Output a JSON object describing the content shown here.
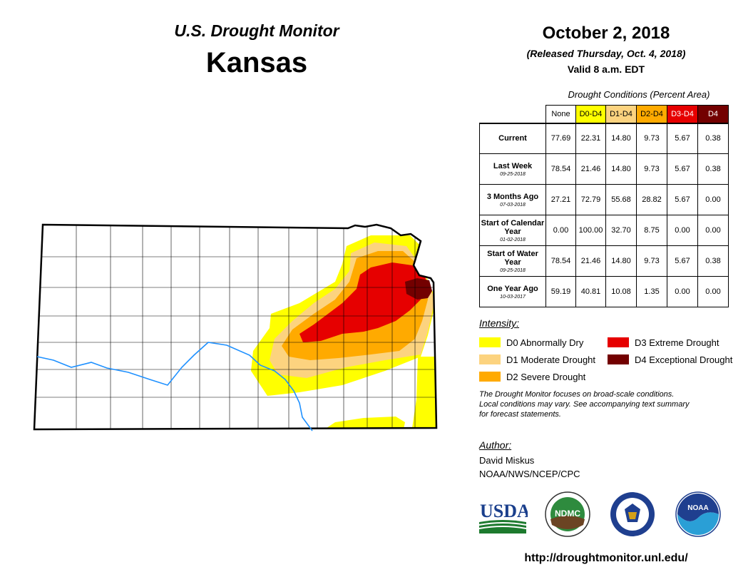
{
  "header": {
    "subtitle": "U.S. Drought Monitor",
    "title": "Kansas",
    "date": "October 2, 2018",
    "released": "(Released Thursday, Oct. 4, 2018)",
    "valid": "Valid 8 a.m. EDT"
  },
  "table": {
    "caption": "Drought Conditions (Percent Area)",
    "columns": [
      {
        "label": "None",
        "color": "#ffffff",
        "text_color": "#000000"
      },
      {
        "label": "D0-D4",
        "color": "#ffff00",
        "text_color": "#000000"
      },
      {
        "label": "D1-D4",
        "color": "#fcd37f",
        "text_color": "#000000"
      },
      {
        "label": "D2-D4",
        "color": "#ffaa00",
        "text_color": "#000000"
      },
      {
        "label": "D3-D4",
        "color": "#e60000",
        "text_color": "#ffffff"
      },
      {
        "label": "D4",
        "color": "#730000",
        "text_color": "#ffffff"
      }
    ],
    "rows": [
      {
        "label": "Current",
        "date": "",
        "values": [
          "77.69",
          "22.31",
          "14.80",
          "9.73",
          "5.67",
          "0.38"
        ]
      },
      {
        "label": "Last Week",
        "date": "09-25-2018",
        "values": [
          "78.54",
          "21.46",
          "14.80",
          "9.73",
          "5.67",
          "0.38"
        ]
      },
      {
        "label": "3 Months Ago",
        "date": "07-03-2018",
        "values": [
          "27.21",
          "72.79",
          "55.68",
          "28.82",
          "5.67",
          "0.00"
        ]
      },
      {
        "label": "Start of Calendar Year",
        "date": "01-02-2018",
        "values": [
          "0.00",
          "100.00",
          "32.70",
          "8.75",
          "0.00",
          "0.00"
        ]
      },
      {
        "label": "Start of Water Year",
        "date": "09-25-2018",
        "values": [
          "78.54",
          "21.46",
          "14.80",
          "9.73",
          "5.67",
          "0.38"
        ]
      },
      {
        "label": "One Year Ago",
        "date": "10-03-2017",
        "values": [
          "59.19",
          "40.81",
          "10.08",
          "1.35",
          "0.00",
          "0.00"
        ]
      }
    ]
  },
  "legend": {
    "title": "Intensity:",
    "items": [
      {
        "label": "D0 Abnormally Dry",
        "color": "#ffff00"
      },
      {
        "label": "D1 Moderate Drought",
        "color": "#fcd37f"
      },
      {
        "label": "D2 Severe Drought",
        "color": "#ffaa00"
      },
      {
        "label": "D3 Extreme Drought",
        "color": "#e60000"
      },
      {
        "label": "D4 Exceptional Drought",
        "color": "#730000"
      }
    ]
  },
  "note": {
    "line1": "The Drought Monitor focuses on broad-scale conditions.",
    "line2": "Local conditions may vary. See accompanying text summary",
    "line3": "for forecast statements."
  },
  "author": {
    "title": "Author:",
    "name": "David Miskus",
    "org": "NOAA/NWS/NCEP/CPC"
  },
  "logos": {
    "usda": "USDA",
    "ndmc": "NDMC",
    "noaa": "NOAA"
  },
  "url": "http://droughtmonitor.unl.edu/"
}
